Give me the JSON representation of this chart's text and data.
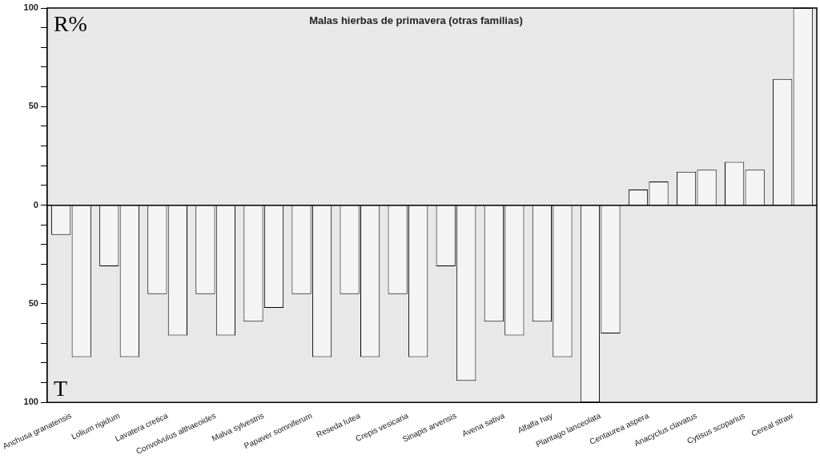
{
  "chart_data": {
    "type": "bar",
    "title": "Malas hierbas de primavera (otras familias)",
    "categories": [
      "Anchusa granatensis",
      "Lolium rigidum",
      "Lavatera cretica",
      "Convolvulus althaeoides",
      "Malva sylvestris",
      "Papaver somniferum",
      "Reseda lutea",
      "Crepis vesicaria",
      "Sinapis arvensis",
      "Avena sativa",
      "Alfalfa hay",
      "Plantago lanceolata",
      "Centaurea aspera",
      "Anacyclus clavatus",
      "Cytisus scoparius",
      "Cereal straw"
    ],
    "series": [
      {
        "color": "#f4f4f4",
        "values": [
          -15,
          -31,
          -45,
          -45,
          -59,
          -45,
          -45,
          -45,
          -31,
          -59,
          -59,
          -100,
          8,
          17,
          22,
          64
        ]
      },
      {
        "color": "#f4f4f4",
        "values": [
          -77,
          -77,
          -66,
          -66,
          -52,
          -77,
          -77,
          -77,
          -89,
          -66,
          -77,
          -65,
          12,
          18,
          18,
          100
        ]
      }
    ],
    "ylim": [
      -100,
      100
    ],
    "yticks": [
      {
        "value": -100,
        "label": "100"
      },
      {
        "value": -90,
        "label": null
      },
      {
        "value": -80,
        "label": null
      },
      {
        "value": -70,
        "label": null
      },
      {
        "value": -60,
        "label": null
      },
      {
        "value": -50,
        "label": "50"
      },
      {
        "value": -40,
        "label": null
      },
      {
        "value": -30,
        "label": null
      },
      {
        "value": -20,
        "label": null
      },
      {
        "value": -10,
        "label": null
      },
      0,
      {
        "value": 10,
        "label": null
      },
      {
        "value": 20,
        "label": null
      },
      {
        "value": 30,
        "label": null
      },
      {
        "value": 40,
        "label": null
      },
      {
        "value": 50,
        "label": "50"
      },
      {
        "value": 60,
        "label": null
      },
      {
        "value": 70,
        "label": null
      },
      {
        "value": 80,
        "label": null
      },
      {
        "value": 90,
        "label": null
      },
      {
        "value": 100,
        "label": "100"
      }
    ],
    "ref_lines": [
      {
        "axis": "y",
        "value": 0,
        "color": "#000000"
      }
    ],
    "annotations": [
      "R%",
      "T"
    ],
    "grid": false,
    "legend": false
  }
}
